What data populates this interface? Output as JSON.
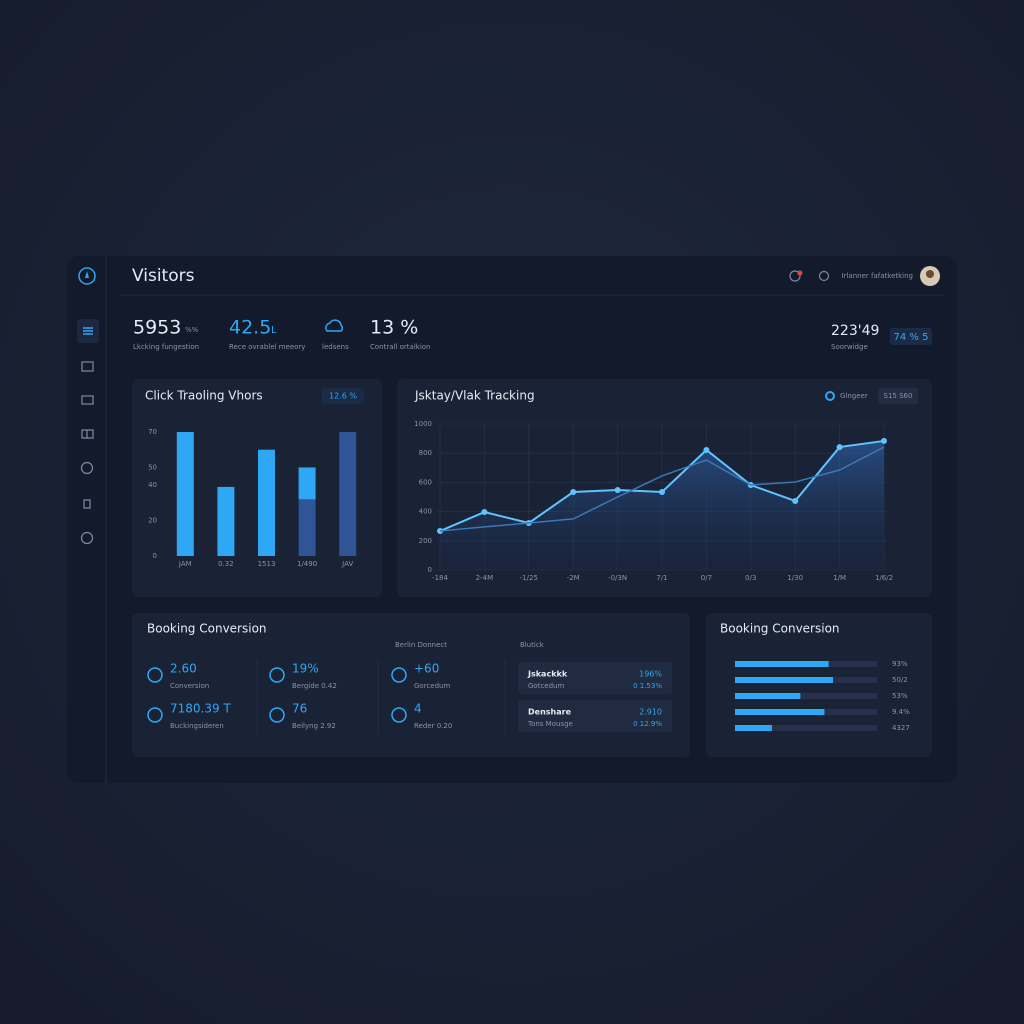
{
  "dashboard": {
    "title": "Visitors",
    "user": "Irlanner fafatketking",
    "stats": [
      {
        "value": "5953",
        "unit": "%%",
        "label": "Lkcking fungestion"
      },
      {
        "value": "42.5",
        "unit": "L",
        "label": "Rece ovrablel meeory"
      },
      {
        "label": "ledsens"
      },
      {
        "value": "13 %",
        "label": "Contrall ortalkion"
      }
    ],
    "stat_right": {
      "value": "223'49",
      "label": "Soorwidge",
      "badge": "74 % 5"
    }
  },
  "chart_data": [
    {
      "type": "bar",
      "title": "Click Traoling Vhors",
      "badge": "12.6 %",
      "categories": [
        "JAM",
        "0.32",
        "1513",
        "1/490",
        "JAV"
      ],
      "series": [
        {
          "color": "#2ea8f5",
          "values": [
            70,
            39,
            60,
            18,
            0
          ]
        },
        {
          "color": "#2f5597",
          "values": [
            0,
            0,
            0,
            32,
            70
          ]
        }
      ],
      "ylim": [
        0,
        70
      ],
      "yticks": [
        0,
        20,
        40,
        50,
        70
      ],
      "grid": false
    },
    {
      "type": "line",
      "title": "Jsktay/Vlak Tracking",
      "badge": "S15 S60",
      "categories": [
        "-184",
        "2-4M",
        "-1/25",
        "-2M",
        "-0/3N",
        "7/1",
        "0/7",
        "0/3",
        "1/30",
        "1/M",
        "1/6/2"
      ],
      "series": [
        {
          "name": "Glngeer",
          "color": "#5ec4ff",
          "values": [
            267,
            397,
            322,
            534,
            548,
            534,
            822,
            582,
            473,
            842,
            884
          ]
        },
        {
          "color": "#3a78b8",
          "values": [
            267,
            295,
            322,
            350,
            500,
            644,
            753,
            582,
            603,
            685,
            842
          ]
        }
      ],
      "ylim": [
        0,
        1000
      ],
      "yticks": [
        0,
        200,
        400,
        600,
        800,
        1000
      ],
      "grid": true
    },
    {
      "type": "hbar",
      "title": "Booking Conversion",
      "color": "#2ea8f5",
      "values": [
        66,
        69,
        46,
        63,
        26
      ],
      "labels": [
        "93%",
        "50/2",
        "53%",
        "9.4%",
        "4327"
      ],
      "xlim": [
        0,
        100
      ]
    }
  ],
  "booking": {
    "title": "Booking Conversion",
    "headers": [
      "Berlin Donnect",
      "Blutick"
    ],
    "metrics": [
      {
        "value": "2.60",
        "label": "Conversion"
      },
      {
        "value": "19%",
        "label": "Bergide 0.42"
      },
      {
        "value": "+60",
        "label": "Gorcedum"
      },
      {
        "value": "7180.39 T",
        "label": "Buckingsideren"
      },
      {
        "value": "76",
        "label": "Beilyng 2.92"
      },
      {
        "value": "4",
        "label": "Reder 0.20"
      }
    ],
    "list": [
      {
        "title": "Jskackkk",
        "sub": "Gotcedum",
        "value": "196%",
        "change": "0 1.53%"
      },
      {
        "title": "Denshare",
        "sub": "Tons Mousge",
        "value": "2.910",
        "change": "0 12.9%"
      }
    ]
  }
}
